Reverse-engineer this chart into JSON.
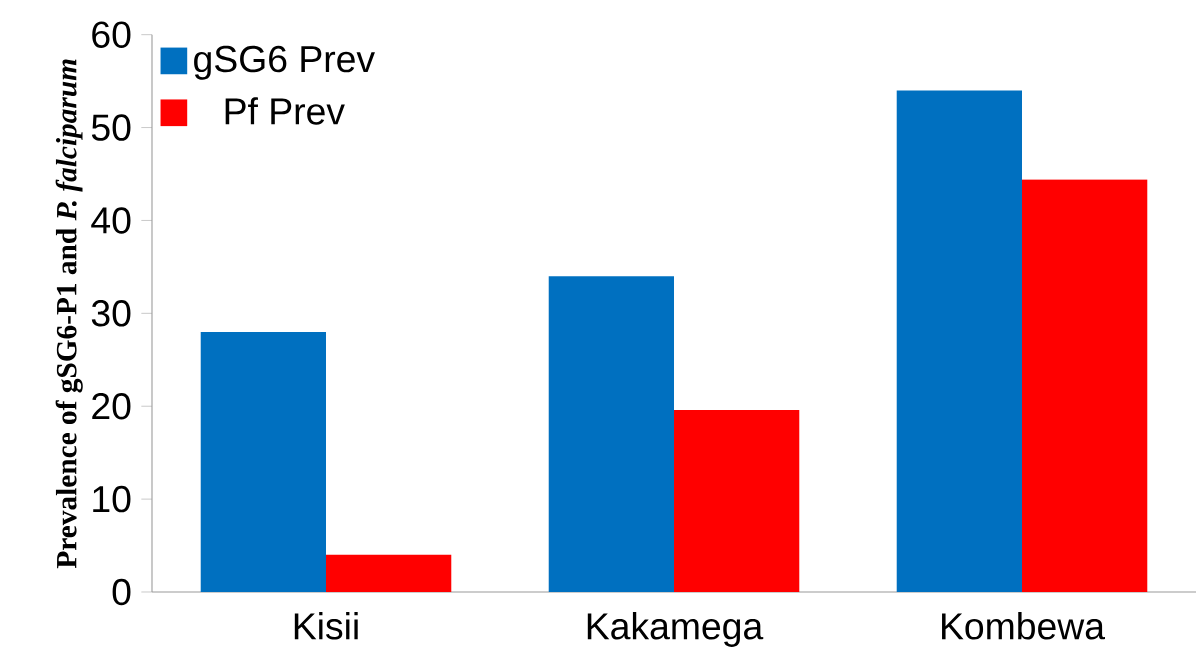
{
  "chart_data": {
    "type": "bar",
    "ylabel": "Prevalence of  gSG6-P1 and *P. falciparum*",
    "categories": [
      "Kisii",
      "Kakamega",
      "Kombewa"
    ],
    "series": [
      {
        "name": "gSG6 Prev",
        "color": "#0070c0",
        "values": [
          28,
          34,
          54
        ]
      },
      {
        "name": "Pf Prev",
        "color": "#ff0000",
        "values": [
          4,
          19.6,
          44.4
        ]
      }
    ],
    "ylim": [
      0,
      60
    ],
    "yticks": [
      0,
      10,
      20,
      30,
      40,
      50,
      60
    ],
    "grid": false,
    "legend": "top left"
  }
}
